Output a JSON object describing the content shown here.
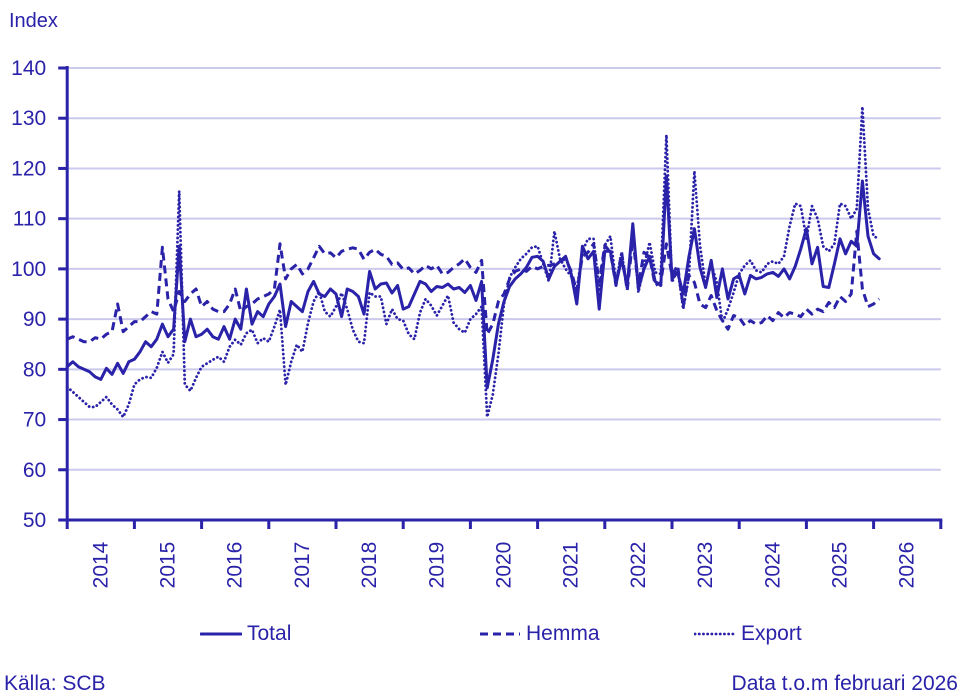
{
  "colors": {
    "line": "#2a22a8",
    "grid": "#cbc9ec",
    "text": "#2a22a8"
  },
  "legend": {
    "items": [
      {
        "label": "Total",
        "style": "solid"
      },
      {
        "label": "Hemma",
        "style": "dashed"
      },
      {
        "label": "Export",
        "style": "dotted"
      }
    ]
  },
  "footer": {
    "source": "Källa: SCB",
    "note": "Data t.o.m februari 2026"
  },
  "chart_data": {
    "type": "line",
    "title": "Index",
    "xlabel": "",
    "ylabel": "Index",
    "ylim": [
      50,
      140
    ],
    "grid": true,
    "legend_position": "bottom",
    "x_start": "2014-01",
    "x_end": "2026-02",
    "x_tick_labels": [
      "2014",
      "2015",
      "2016",
      "2017",
      "2018",
      "2019",
      "2020",
      "2021",
      "2022",
      "2023",
      "2024",
      "2025",
      "2026"
    ],
    "y_ticks": [
      50,
      60,
      70,
      80,
      90,
      100,
      110,
      120,
      130,
      140
    ],
    "series": [
      {
        "name": "Total",
        "style": "solid",
        "values": [
          80.5,
          81.5,
          80.5,
          80,
          79.5,
          78.5,
          78,
          80.2,
          79,
          81.2,
          79.2,
          81.5,
          82,
          83.5,
          85.5,
          84.5,
          86,
          89,
          86.5,
          88,
          104.5,
          85.5,
          90,
          86.5,
          87,
          88,
          86.5,
          86,
          88.5,
          86,
          90,
          88,
          96,
          89,
          91.5,
          90.5,
          93,
          94.5,
          97,
          88.5,
          93.5,
          92.5,
          91.5,
          95.5,
          97.5,
          95,
          94.5,
          96,
          95,
          90.5,
          96,
          95.5,
          94.5,
          91,
          99.5,
          96,
          97,
          97.2,
          95.2,
          96.7,
          92,
          92.5,
          95,
          97.5,
          97,
          95.5,
          96.5,
          96.3,
          97,
          96,
          96.3,
          95.3,
          96.7,
          93.7,
          97.5,
          76.3,
          82,
          89,
          93.5,
          96.5,
          98,
          99,
          100.3,
          102.3,
          102.5,
          101.5,
          98,
          100.5,
          101.5,
          102.5,
          99,
          93,
          104.5,
          102,
          103.5,
          92,
          103.5,
          103.5,
          97,
          102,
          96.5,
          109,
          96,
          100,
          102.5,
          97.5,
          96.7,
          118.5,
          98,
          99.3,
          95,
          102.3,
          108,
          100.3,
          96.3,
          101.7,
          94.3,
          100,
          94,
          98,
          98.7,
          95,
          98.7,
          98,
          98.3,
          99,
          99.3,
          98.5,
          100,
          98,
          100.5,
          104,
          108,
          101,
          104.3,
          96.5,
          96.3,
          101,
          106,
          103,
          105.5,
          104.5,
          117.5,
          106.5,
          103,
          102
        ]
      },
      {
        "name": "Hemma",
        "style": "dashed",
        "values": [
          86,
          86.5,
          86,
          85.5,
          85.5,
          86.3,
          86,
          87,
          87.5,
          93,
          87.5,
          88.5,
          89.5,
          89.5,
          90.5,
          91.5,
          91,
          104.3,
          94,
          91.5,
          95.5,
          93.5,
          95,
          96,
          92.5,
          93.5,
          92,
          91.5,
          91.5,
          93,
          96,
          91.5,
          92.5,
          93,
          94,
          94.5,
          95,
          96,
          105,
          98,
          100,
          100.9,
          99,
          100,
          102.2,
          104.5,
          103,
          103.2,
          102.2,
          103.5,
          103.9,
          104.2,
          103.9,
          101.9,
          103.3,
          103.9,
          102.9,
          102.5,
          100.9,
          101.2,
          99.9,
          100.2,
          99,
          99.7,
          100.7,
          100,
          100.7,
          99,
          99.3,
          100.3,
          101,
          102,
          100.3,
          99.3,
          101.7,
          87,
          89,
          93.5,
          95,
          98,
          99.5,
          100,
          99.5,
          100.5,
          100,
          100.5,
          100.7,
          101,
          101.5,
          102,
          99.5,
          95.5,
          102.5,
          103.3,
          105,
          97.3,
          104.7,
          103.3,
          96.7,
          103.3,
          95.7,
          106,
          96.7,
          103.3,
          102.3,
          96.7,
          97.3,
          105,
          98.7,
          100.7,
          92.5,
          98.7,
          97.3,
          93,
          92.3,
          94.7,
          91.7,
          89.7,
          88,
          90.7,
          90.3,
          88.7,
          89.7,
          89,
          89.3,
          90.7,
          89.7,
          91.3,
          90.3,
          91.3,
          91,
          90.5,
          92,
          91,
          92,
          91.5,
          93.3,
          92.3,
          94.5,
          93.5,
          95,
          107.5,
          96,
          92.5,
          93,
          94
        ]
      },
      {
        "name": "Export",
        "style": "dotted",
        "values": [
          76.5,
          75.5,
          74.5,
          73.5,
          72.5,
          72.5,
          73.5,
          74.5,
          73,
          72,
          70.5,
          73,
          77,
          78,
          78.5,
          78.3,
          80.3,
          83.5,
          81.3,
          83,
          115.5,
          77,
          75.7,
          78.3,
          80.5,
          81.2,
          81.9,
          82.5,
          81.5,
          84.5,
          85.9,
          84.9,
          87.2,
          87.9,
          85.2,
          86.2,
          85.5,
          88.5,
          91.9,
          76.9,
          81.5,
          84.9,
          83.5,
          89.2,
          93.5,
          95.5,
          91.5,
          90.5,
          92.5,
          95.2,
          92,
          87.9,
          85.5,
          85.2,
          95.3,
          94.5,
          94.5,
          89,
          92,
          90,
          89.7,
          87,
          86,
          91.3,
          94,
          92.7,
          90.7,
          92.7,
          94.7,
          89.3,
          88,
          87.3,
          90,
          91,
          92.5,
          70.5,
          75,
          83,
          93,
          98.3,
          100.3,
          102,
          103,
          104.3,
          104.5,
          101,
          97.5,
          107.5,
          102,
          100,
          98.5,
          96,
          103.5,
          106,
          106,
          95.5,
          104.7,
          106.5,
          97.3,
          103.3,
          96,
          108.5,
          95.3,
          100.5,
          105.3,
          99.3,
          99,
          126.7,
          97.3,
          100,
          92,
          98.3,
          119.5,
          104.7,
          96.7,
          101,
          97.3,
          89.3,
          92,
          95.3,
          99,
          100.7,
          101.7,
          99.7,
          99.3,
          101,
          101.5,
          101,
          102.5,
          108.5,
          113,
          112.5,
          106,
          112.5,
          110,
          104.5,
          103.5,
          105,
          113,
          112.5,
          110,
          112,
          132.3,
          112,
          106.5,
          106
        ]
      }
    ]
  }
}
